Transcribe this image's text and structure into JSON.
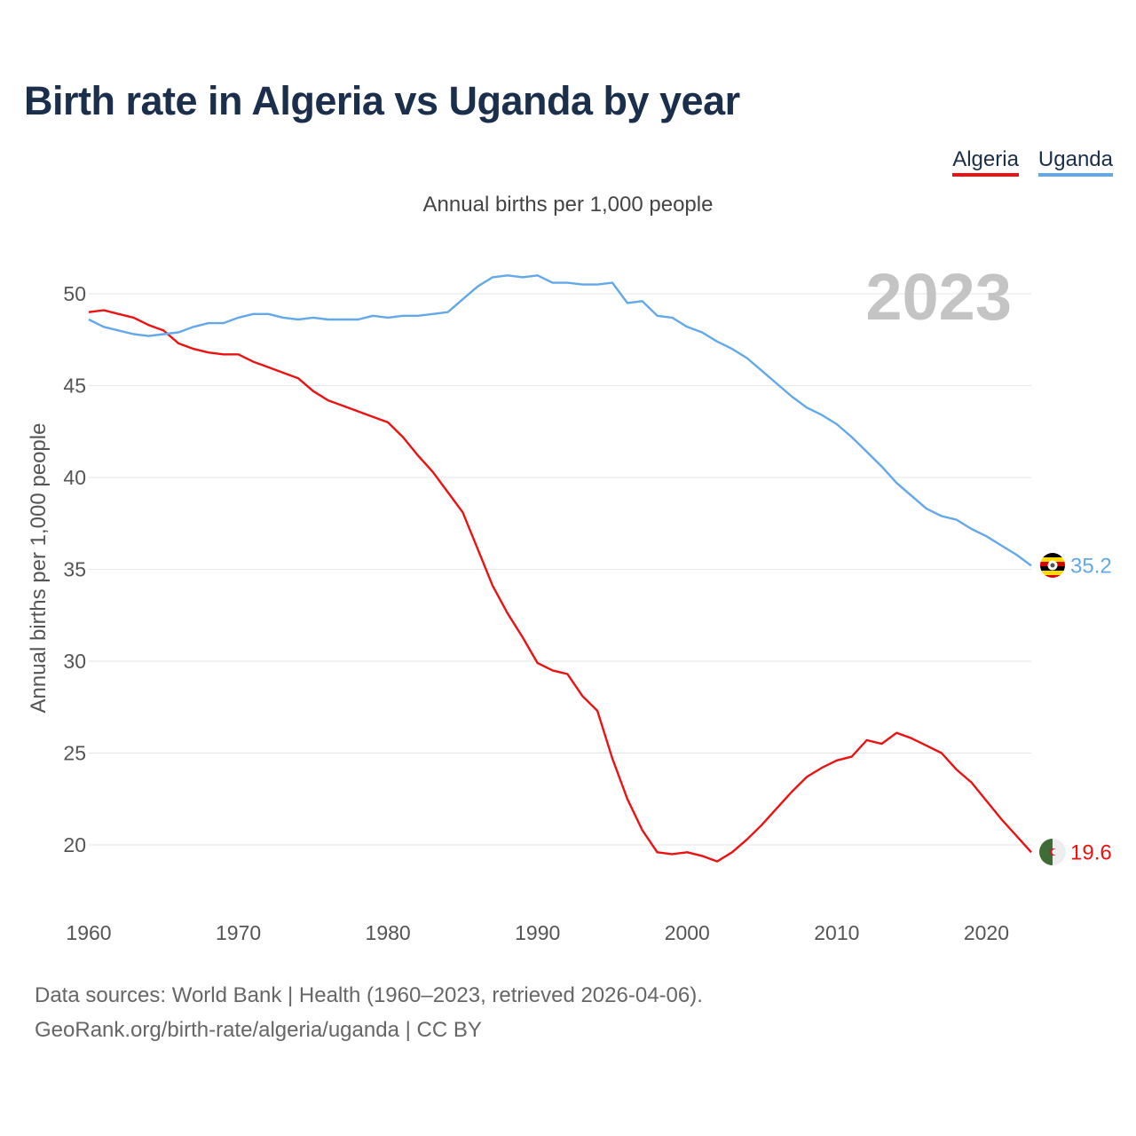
{
  "title": "Birth rate in Algeria vs Uganda by year",
  "subtitle": "Annual births per 1,000 people",
  "legend": [
    "Algeria",
    "Uganda"
  ],
  "source": {
    "line1": "Data sources: World Bank | Health (1960–2023, retrieved 2026-04-06).",
    "line2": "GeoRank.org/birth-rate/algeria/uganda | CC BY"
  },
  "colors": {
    "algeria": "#ee1111",
    "uganda": "#63a8ea"
  },
  "chart_data": {
    "type": "line",
    "title": "Birth rate in Algeria vs Uganda by year",
    "subtitle": "Annual births per 1,000 people",
    "xlabel": "",
    "ylabel": "Annual births per 1,000 people",
    "xlim": [
      1960,
      2023
    ],
    "ylim": [
      17,
      53
    ],
    "yticks": [
      20,
      25,
      30,
      35,
      40,
      45,
      50
    ],
    "xticks": [
      1960,
      1970,
      1980,
      1990,
      2000,
      2010,
      2020
    ],
    "current_year": "2023",
    "x": [
      1960,
      1961,
      1962,
      1963,
      1964,
      1965,
      1966,
      1967,
      1968,
      1969,
      1970,
      1971,
      1972,
      1973,
      1974,
      1975,
      1976,
      1977,
      1978,
      1979,
      1980,
      1981,
      1982,
      1983,
      1984,
      1985,
      1986,
      1987,
      1988,
      1989,
      1990,
      1991,
      1992,
      1993,
      1994,
      1995,
      1996,
      1997,
      1998,
      1999,
      2000,
      2001,
      2002,
      2003,
      2004,
      2005,
      2006,
      2007,
      2008,
      2009,
      2010,
      2011,
      2012,
      2013,
      2014,
      2015,
      2016,
      2017,
      2018,
      2019,
      2020,
      2021,
      2022,
      2023
    ],
    "series": [
      {
        "name": "Algeria",
        "color": "#ee1111",
        "end_label": "19.6",
        "values": [
          49.0,
          49.1,
          48.9,
          48.7,
          48.3,
          48.0,
          47.3,
          47.0,
          46.8,
          46.7,
          46.7,
          46.3,
          46.0,
          45.7,
          45.4,
          44.7,
          44.2,
          43.9,
          43.6,
          43.3,
          43.0,
          42.2,
          41.2,
          40.3,
          39.2,
          38.1,
          36.1,
          34.1,
          32.6,
          31.3,
          29.9,
          29.5,
          29.3,
          28.1,
          27.3,
          24.7,
          22.5,
          20.8,
          19.6,
          19.5,
          19.6,
          19.4,
          19.1,
          19.6,
          20.3,
          21.1,
          22.0,
          22.9,
          23.7,
          24.2,
          24.6,
          24.8,
          25.7,
          25.5,
          26.1,
          25.8,
          25.4,
          25.0,
          24.1,
          23.4,
          22.4,
          21.4,
          20.5,
          19.6
        ]
      },
      {
        "name": "Uganda",
        "color": "#63a8ea",
        "end_label": "35.2",
        "values": [
          48.6,
          48.2,
          48.0,
          47.8,
          47.7,
          47.8,
          47.9,
          48.2,
          48.4,
          48.4,
          48.7,
          48.9,
          48.9,
          48.7,
          48.6,
          48.7,
          48.6,
          48.6,
          48.6,
          48.8,
          48.7,
          48.8,
          48.8,
          48.9,
          49.0,
          49.7,
          50.4,
          50.9,
          51.0,
          50.9,
          51.0,
          50.6,
          50.6,
          50.5,
          50.5,
          50.6,
          49.5,
          49.6,
          48.8,
          48.7,
          48.2,
          47.9,
          47.4,
          47.0,
          46.5,
          45.8,
          45.1,
          44.4,
          43.8,
          43.4,
          42.9,
          42.2,
          41.4,
          40.6,
          39.7,
          39.0,
          38.3,
          37.9,
          37.7,
          37.2,
          36.8,
          36.3,
          35.8,
          35.2
        ]
      }
    ]
  }
}
